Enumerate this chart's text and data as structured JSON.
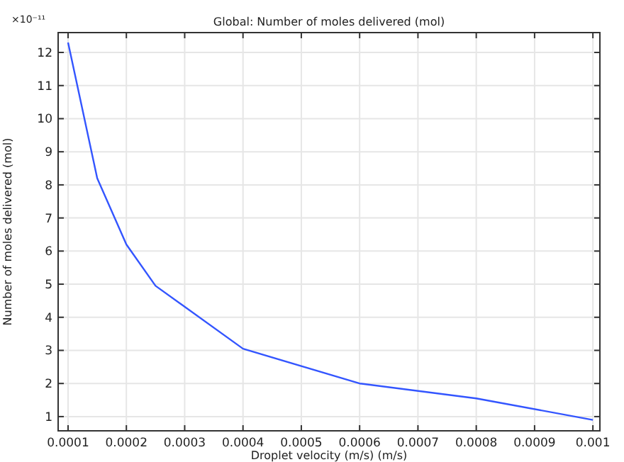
{
  "chart_data": {
    "type": "line",
    "title": "Global: Number of moles delivered (mol)",
    "xlabel": "Droplet velocity (m/s) (m/s)",
    "ylabel": "Number of moles delivered (mol)",
    "annotations": [
      "×10⁻¹¹"
    ],
    "x": [
      0.0001,
      0.00015,
      0.0002,
      0.00025,
      0.0004,
      0.0006,
      0.0008,
      0.001
    ],
    "series": [
      {
        "color": "#3355ff",
        "values": [
          12.3,
          8.2,
          6.2,
          4.95,
          3.05,
          2.0,
          1.55,
          0.9
        ]
      }
    ],
    "xlim": [
      8.3e-05,
      0.001012
    ],
    "xticks": [
      0.0001,
      0.0002,
      0.0003,
      0.0004,
      0.0005,
      0.0006,
      0.0007,
      0.0008,
      0.0009,
      0.001
    ],
    "ylim": [
      0.57,
      12.6
    ],
    "yticks": [
      1,
      2,
      3,
      4,
      5,
      6,
      7,
      8,
      9,
      10,
      11,
      12
    ],
    "grid": true,
    "marker": "none",
    "line_style": "solid"
  }
}
